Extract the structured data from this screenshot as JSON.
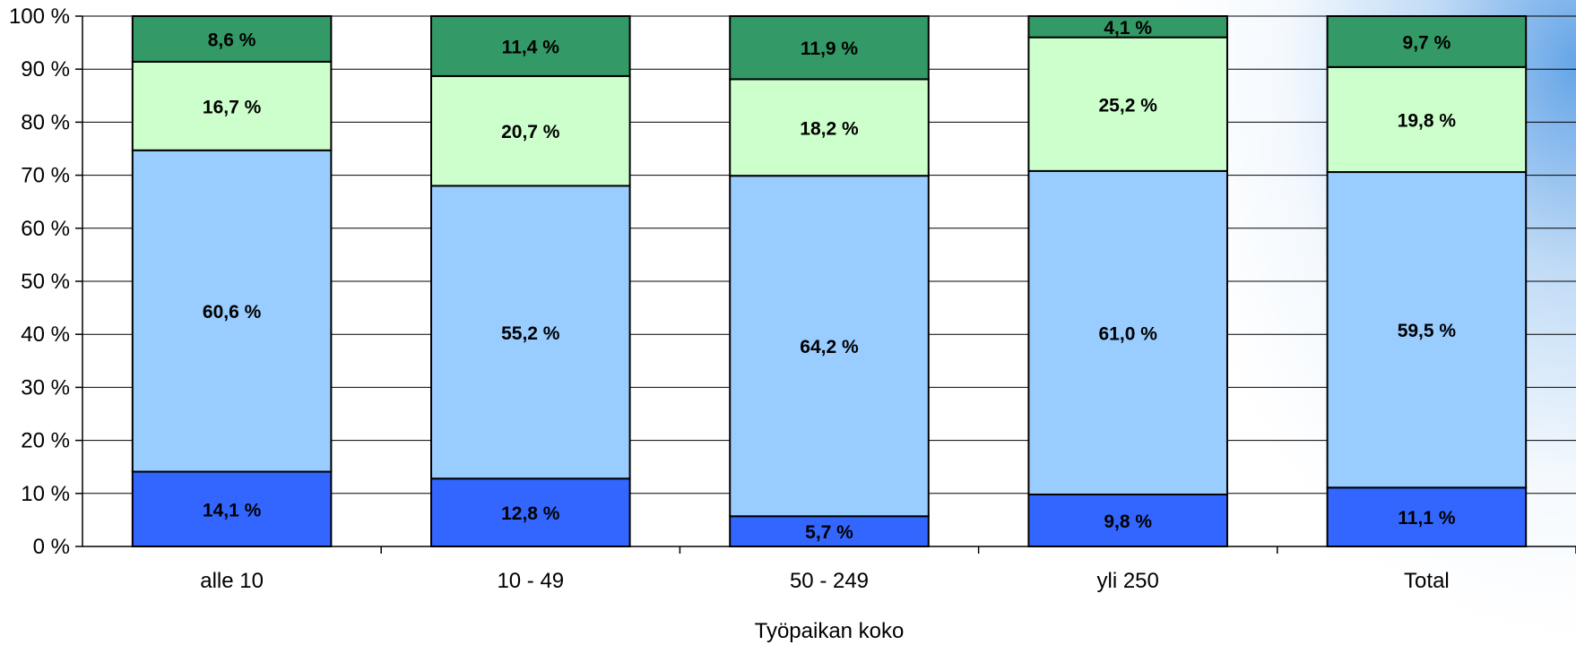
{
  "chart_data": {
    "type": "bar",
    "stacked": true,
    "categories": [
      "alle 10",
      "10 - 49",
      "50 - 249",
      "yli 250",
      "Total"
    ],
    "series": [
      {
        "values": [
          14.1,
          12.8,
          5.7,
          9.8,
          11.1
        ],
        "labels": [
          "14,1 %",
          "12,8 %",
          "5,7 %",
          "9,8 %",
          "11,1 %"
        ],
        "color": "#3366ff"
      },
      {
        "values": [
          60.6,
          55.2,
          64.2,
          61.0,
          59.5
        ],
        "labels": [
          "60,6 %",
          "55,2 %",
          "64,2 %",
          "61,0 %",
          "59,5 %"
        ],
        "color": "#99ccff"
      },
      {
        "values": [
          16.7,
          20.7,
          18.2,
          25.2,
          19.8
        ],
        "labels": [
          "16,7 %",
          "20,7 %",
          "18,2 %",
          "25,2 %",
          "19,8 %"
        ],
        "color": "#ccffcc"
      },
      {
        "values": [
          8.6,
          11.4,
          11.9,
          4.1,
          9.7
        ],
        "labels": [
          "8,6 %",
          "11,4 %",
          "11,9 %",
          "4,1 %",
          "9,7 %"
        ],
        "color": "#339966"
      }
    ],
    "yticks": [
      "0 %",
      "10 %",
      "20 %",
      "30 %",
      "40 %",
      "50 %",
      "60 %",
      "70 %",
      "80 %",
      "90 %",
      "100 %"
    ],
    "ylim": [
      0,
      100
    ],
    "xlabel": "Työpaikan koko",
    "grid": true
  }
}
